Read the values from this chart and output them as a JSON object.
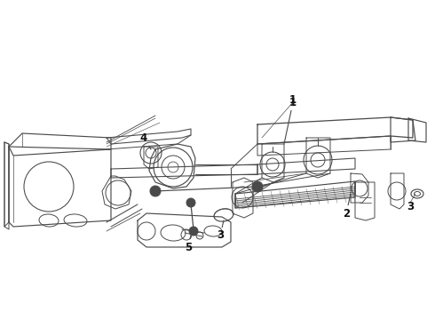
{
  "background_color": "#ffffff",
  "line_color": "#4a4a4a",
  "line_width": 0.7,
  "figsize": [
    4.9,
    3.6
  ],
  "dpi": 100
}
